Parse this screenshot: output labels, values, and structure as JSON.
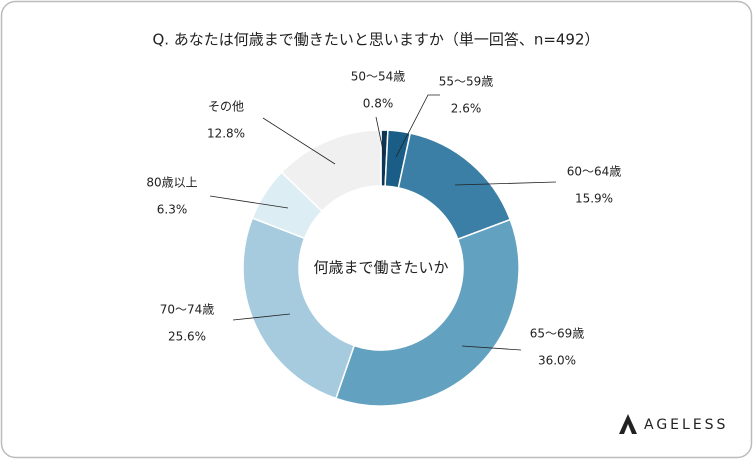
{
  "chart_data": {
    "type": "pie",
    "title": "Q. あなたは何歳まで働きたいと思いますか（単一回答、n=492）",
    "center_text": "何歳まで働きたいか",
    "categories": [
      "50〜54歳",
      "55〜59歳",
      "60〜64歳",
      "65〜69歳",
      "70〜74歳",
      "80歳以上",
      "その他"
    ],
    "values": [
      0.8,
      2.6,
      15.9,
      36.0,
      25.6,
      6.3,
      12.8
    ],
    "value_labels": [
      "0.8%",
      "2.6%",
      "15.9%",
      "36.0%",
      "25.6%",
      "6.3%",
      "12.8%"
    ],
    "colors": [
      "#0d3656",
      "#1a5d87",
      "#3b7fa6",
      "#62a1c0",
      "#a6cbde",
      "#ddedf4",
      "#f0f0f0"
    ],
    "logo": "AGELESS"
  }
}
